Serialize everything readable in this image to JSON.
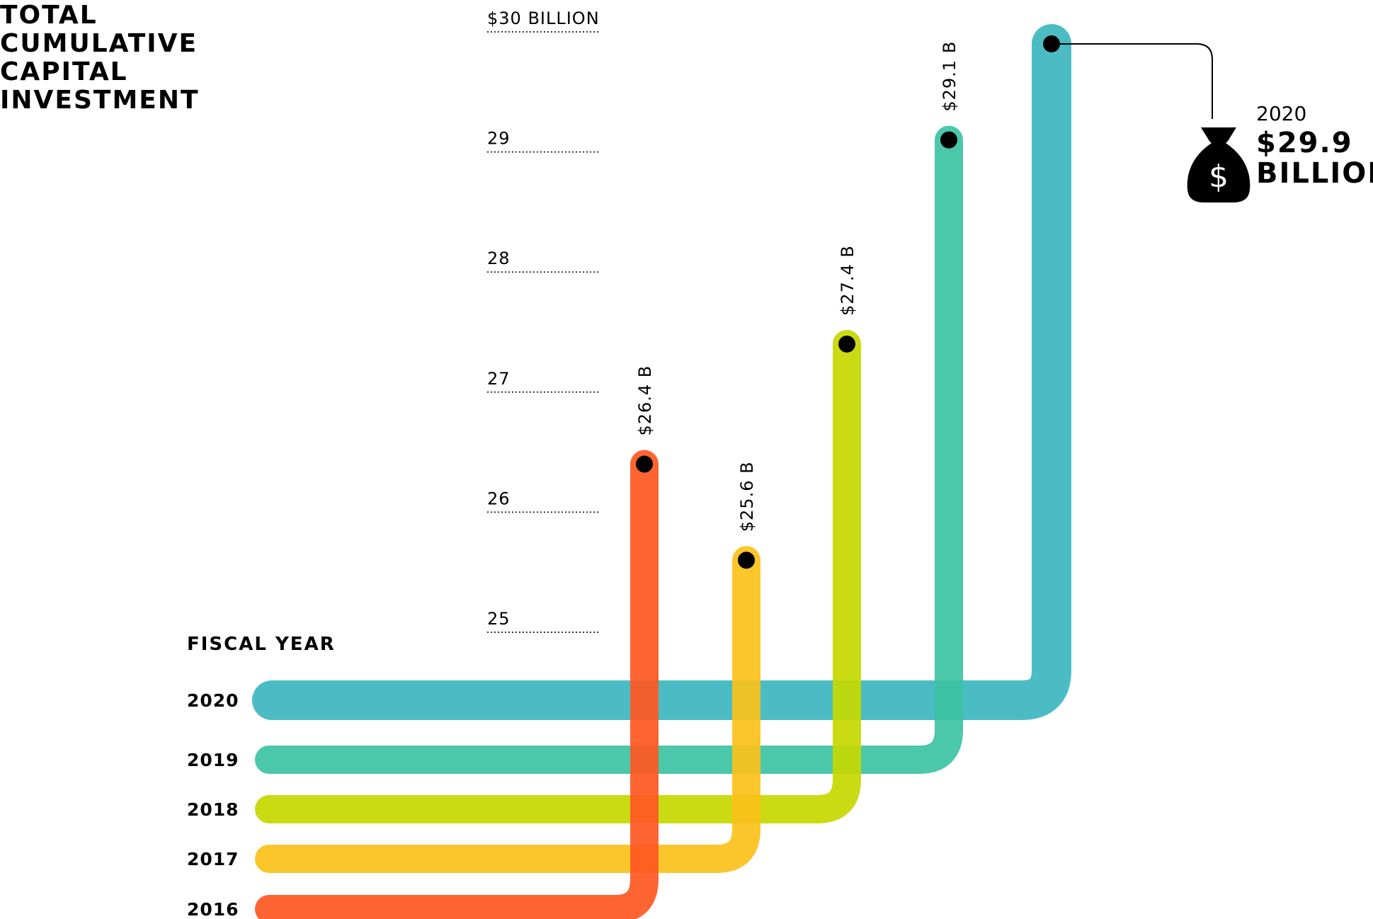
{
  "chart_data": {
    "type": "line",
    "title": [
      "TOTAL",
      "CUMULATIVE",
      "CAPITAL",
      "INVESTMENT"
    ],
    "xlabel": "FISCAL YEAR",
    "y_ticks": [
      {
        "value": 30,
        "label": "$30 BILLION"
      },
      {
        "value": 29,
        "label": "29"
      },
      {
        "value": 28,
        "label": "28"
      },
      {
        "value": 27,
        "label": "27"
      },
      {
        "value": 26,
        "label": "26"
      },
      {
        "value": 25,
        "label": "25"
      }
    ],
    "ylim": [
      25,
      30
    ],
    "series": [
      {
        "year": "2016",
        "value": 26.4,
        "label": "$26.4 B",
        "color": "#FF5722"
      },
      {
        "year": "2017",
        "value": 25.6,
        "label": "$25.6 B",
        "color": "#FBC11A"
      },
      {
        "year": "2018",
        "value": 27.4,
        "label": "$27.4 B",
        "color": "#C5D800"
      },
      {
        "year": "2019",
        "value": 29.1,
        "label": "$29.1 B",
        "color": "#3CC2A3"
      },
      {
        "year": "2020",
        "value": 29.9,
        "label": "",
        "color": "#3DB6BF"
      }
    ],
    "callout": {
      "year": "2020",
      "value_line1": "$29.9",
      "value_line2": "BILLION",
      "icon": "money-bag-icon"
    }
  }
}
